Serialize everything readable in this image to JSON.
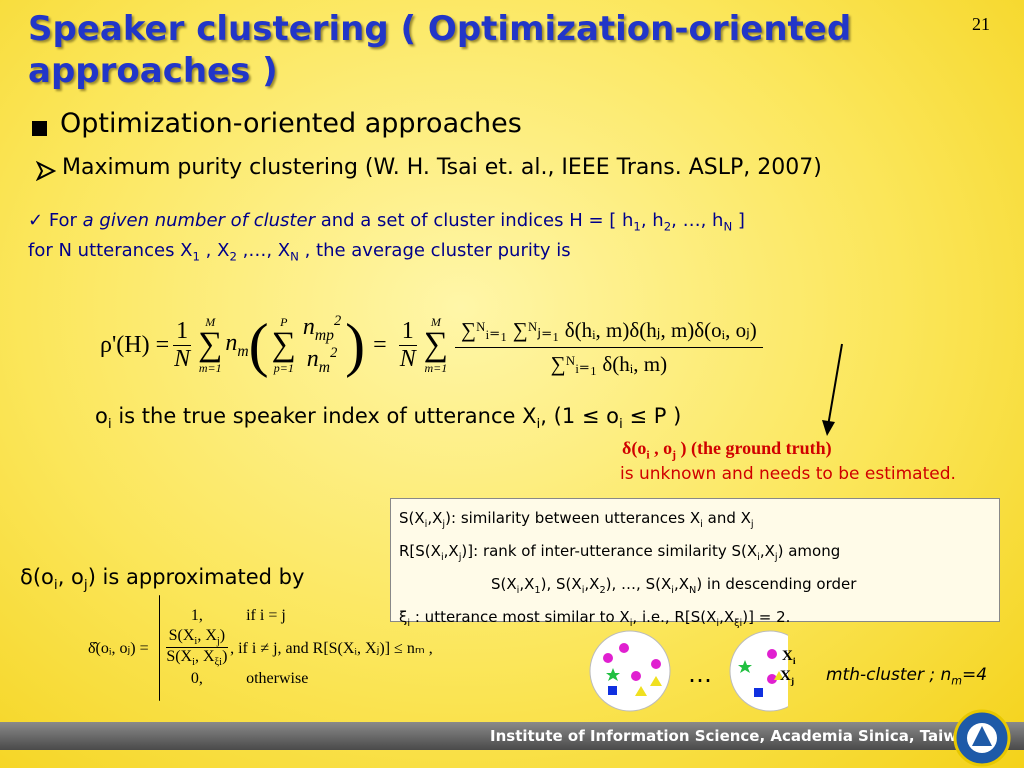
{
  "page_number": "21",
  "title": "Speaker clustering ( Optimization-oriented approaches )",
  "bullet": "Optimization-oriented approaches",
  "sub_bullet": "Maximum purity clustering (W. H. Tsai et. al., IEEE Trans. ASLP, 2007)",
  "definition": {
    "lead": "For",
    "emph": "a given number of cluster",
    "rest": [
      "and a set of cluster indices H = [ h",
      "1",
      ", h",
      "2",
      ", …, h",
      "N",
      " ]"
    ],
    "line2": [
      "for N utterances X",
      "1",
      " , X",
      "2",
      " ,…, X",
      "N",
      " ,   the average cluster purity is"
    ]
  },
  "purity": {
    "lhs": "ρ'(H) =",
    "frac1": [
      "1",
      "N"
    ],
    "sum1": [
      "M",
      "∑",
      "m=1"
    ],
    "n_m": [
      "n",
      "m"
    ],
    "open": "(",
    "sum2": [
      "P",
      "∑",
      "p=1"
    ],
    "frac2_num": [
      "n",
      "mp",
      "2"
    ],
    "frac2_den": [
      "n",
      "m",
      "2"
    ],
    "close": ")",
    "eq": "=",
    "frac3": [
      "1",
      "N"
    ],
    "sum3": [
      "M",
      "∑",
      "m=1"
    ],
    "numerator": "∑ᴺᵢ₌₁ ∑ᴺⱼ₌₁ δ(hᵢ, m)δ(hⱼ, m)δ(oᵢ, oⱼ)",
    "denominator": "∑ᴺᵢ₌₁ δ(hᵢ, m)"
  },
  "true_index": [
    "o",
    "i",
    " is the true speaker index of utterance X",
    "i",
    ", (1 ≤ o",
    "i",
    " ≤ P )"
  ],
  "ground_truth": [
    "δ(o",
    "i",
    " , o",
    "j",
    " ) (the ground truth)"
  ],
  "unknown": "is unknown and needs to be estimated.",
  "box": [
    [
      "S(X",
      "i",
      ",X",
      "j",
      "): similarity between utterances X",
      "i",
      " and X",
      "j"
    ],
    [
      "R[S(X",
      "i",
      ",X",
      "j",
      ")]: rank of inter-utterance similarity S(X",
      "i",
      ",X",
      "j",
      ") among"
    ],
    [
      "S(X",
      "i",
      ",X",
      "1",
      "), S(X",
      "i",
      ",X",
      "2",
      "), …, S(X",
      "i",
      ",X",
      "N",
      ") in descending order"
    ],
    [
      "ξ",
      "i",
      " : utterance most similar to X",
      "i",
      ", i.e., R[S(X",
      "i",
      ",X",
      "ξi",
      ")] = 2."
    ]
  ],
  "approx_label": [
    "δ(o",
    "i",
    ", o",
    "j",
    ") is approximated by"
  ],
  "approx": {
    "lhs": "δ̂(oᵢ, oⱼ) =",
    "case1": "1,",
    "cond1": "if i = j",
    "case2_num": [
      "S(X",
      "i",
      ", X",
      "j",
      ")"
    ],
    "case2_den": [
      "S(X",
      "i",
      ", X",
      "ξi",
      ")"
    ],
    "cond2": ", if i ≠ j, and R[S(Xᵢ, Xⱼ)] ≤ nₘ ,",
    "case3": "0,",
    "cond3": "otherwise"
  },
  "cluster": {
    "ellipsis": "…",
    "xi": [
      "X",
      "i"
    ],
    "xj": [
      "X",
      "j"
    ],
    "caption": [
      "mth-cluster ; n",
      "m",
      "=4"
    ]
  },
  "footer": "Institute of Information Science, Academia Sinica, Taiwan"
}
